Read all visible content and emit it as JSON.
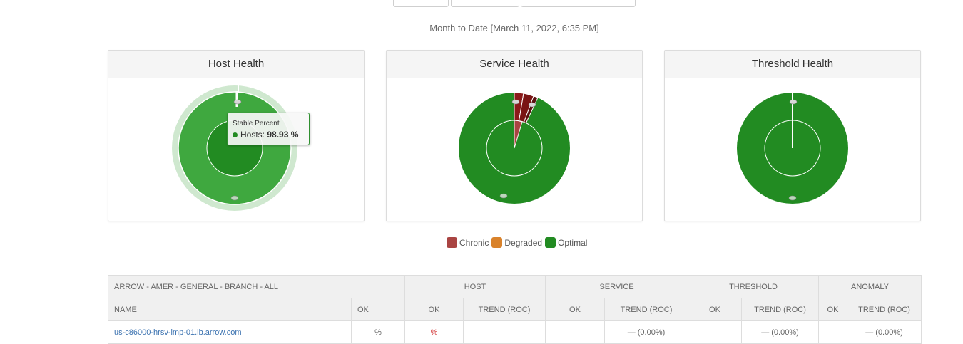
{
  "report": {
    "subtitle": "Month to Date [March 11, 2022, 6:35 PM]"
  },
  "cards": [
    {
      "title": "Host Health"
    },
    {
      "title": "Service Health"
    },
    {
      "title": "Threshold Health"
    }
  ],
  "tooltip": {
    "title": "Stable Percent",
    "series": "Hosts:",
    "value": "98.93 %"
  },
  "colors": {
    "chronic": "#a94442",
    "degraded": "#d9822b",
    "optimal": "#228b22"
  },
  "legend": {
    "chronic": "Chronic",
    "degraded": "Degraded",
    "optimal": "Optimal"
  },
  "table": {
    "group_label": "ARROW - AMER - GENERAL - BRANCH - ALL",
    "groups": {
      "host": "HOST",
      "service": "SERVICE",
      "threshold": "THRESHOLD",
      "anomaly": "ANOMALY"
    },
    "columns": {
      "name": "NAME",
      "ok": "OK",
      "trend": "TREND (ROC)"
    },
    "first_row": {
      "name": "us-c86000-hrsv-imp-01.lb.arrow.com",
      "ok": "%",
      "host_ok": "%",
      "service_trend": "— (0.00%)",
      "threshold_trend": "— (0.00%)",
      "anomaly_trend": "— (0.00%)"
    }
  }
}
